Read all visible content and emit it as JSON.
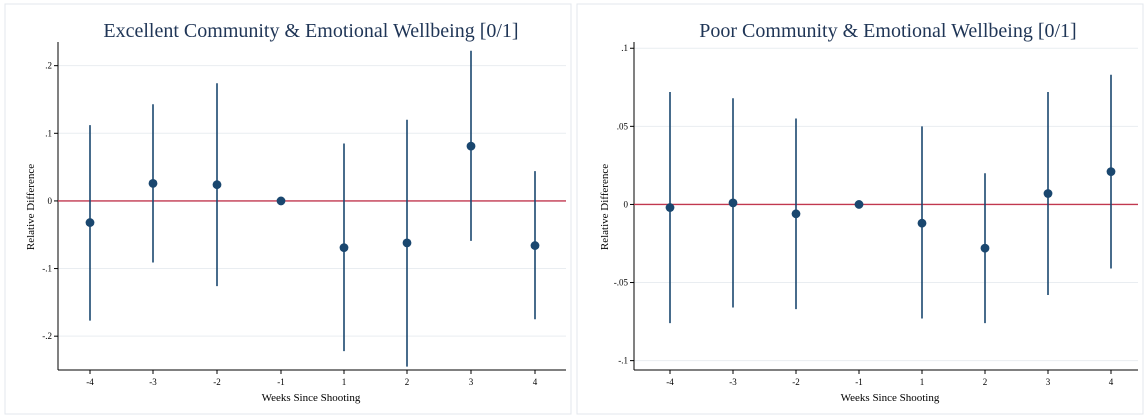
{
  "chart_data": [
    {
      "type": "scatter",
      "subtype": "coefficient plot with confidence intervals",
      "title": "Excellent Community & Emotional Wellbeing [0/1]",
      "xlabel": "Weeks Since Shooting",
      "ylabel": "Relative Difference",
      "x": [
        -4,
        -3,
        -2,
        -1,
        1,
        2,
        3,
        4
      ],
      "x_ticks": [
        "-4",
        "-3",
        "-2",
        "-1",
        "1",
        "2",
        "3",
        "4"
      ],
      "y": [
        -0.032,
        0.026,
        0.024,
        0.0,
        -0.069,
        -0.062,
        0.081,
        -0.066
      ],
      "ci_low": [
        -0.177,
        -0.091,
        -0.126,
        0.0,
        -0.222,
        -0.245,
        -0.059,
        -0.175
      ],
      "ci_high": [
        0.112,
        0.143,
        0.174,
        0.0,
        0.085,
        0.12,
        0.222,
        0.044
      ],
      "y_ticks": [
        0.2,
        0.1,
        0,
        -0.1,
        -0.2
      ],
      "y_tick_labels": [
        ".2",
        ".1",
        "0",
        "-.1",
        "-.2"
      ],
      "ylim": [
        -0.25,
        0.235
      ],
      "reference_line": 0,
      "grid": true,
      "colors": {
        "marker": "#1a476f",
        "reference": "#c1384f",
        "grid": "#e9edf1",
        "title": "#1f3556"
      }
    },
    {
      "type": "scatter",
      "subtype": "coefficient plot with confidence intervals",
      "title": "Poor Community & Emotional Wellbeing [0/1]",
      "xlabel": "Weeks Since Shooting",
      "ylabel": "Relative Difference",
      "x": [
        -4,
        -3,
        -2,
        -1,
        1,
        2,
        3,
        4
      ],
      "x_ticks": [
        "-4",
        "-3",
        "-2",
        "-1",
        "1",
        "2",
        "3",
        "4"
      ],
      "y": [
        -0.002,
        0.001,
        -0.006,
        0.0,
        -0.012,
        -0.028,
        0.007,
        0.021
      ],
      "ci_low": [
        -0.076,
        -0.066,
        -0.067,
        0.0,
        -0.073,
        -0.076,
        -0.058,
        -0.041
      ],
      "ci_high": [
        0.072,
        0.068,
        0.055,
        0.0,
        0.05,
        0.02,
        0.072,
        0.083
      ],
      "y_ticks": [
        0.1,
        0.05,
        0,
        -0.05,
        -0.1
      ],
      "y_tick_labels": [
        ".1",
        ".05",
        "0",
        "-.05",
        "-.1"
      ],
      "ylim": [
        -0.106,
        0.104
      ],
      "reference_line": 0,
      "grid": true,
      "colors": {
        "marker": "#1a476f",
        "reference": "#c1384f",
        "grid": "#e9edf1",
        "title": "#1f3556"
      }
    }
  ]
}
